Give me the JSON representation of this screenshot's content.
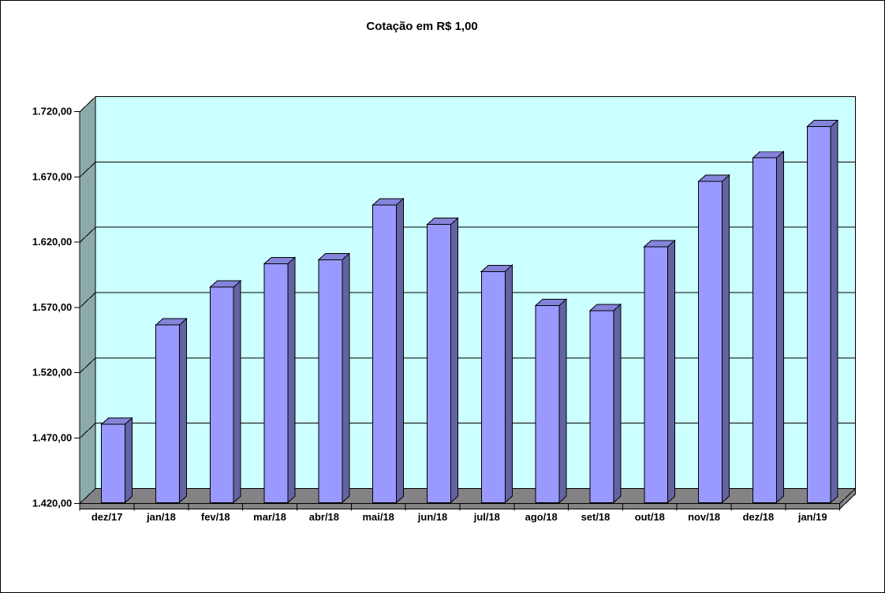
{
  "title": "Cotação em R$ 1,00",
  "chart_data": {
    "type": "bar",
    "style": "3d-column",
    "title": "Cotação em R$ 1,00",
    "xlabel": "",
    "ylabel": "",
    "categories": [
      "dez/17",
      "jan/18",
      "fev/18",
      "mar/18",
      "abr/18",
      "mai/18",
      "jun/18",
      "jul/18",
      "ago/18",
      "set/18",
      "out/18",
      "nov/18",
      "dez/18",
      "jan/19"
    ],
    "values": [
      1480,
      1556,
      1585,
      1603,
      1606,
      1648,
      1633,
      1597,
      1571,
      1567,
      1616,
      1666,
      1684,
      1708
    ],
    "ylim": [
      1420,
      1720
    ],
    "ytick_step": 50,
    "ytick_labels": [
      "1.420,00",
      "1.470,00",
      "1.520,00",
      "1.570,00",
      "1.620,00",
      "1.670,00",
      "1.720,00"
    ],
    "grid": true,
    "legend": "none",
    "colors": {
      "bar_front": "#9999FF",
      "bar_top": "#8484DB",
      "bar_side": "#6363A3",
      "wall_back": "#CCFFFF",
      "wall_side": "#8CAAAA",
      "floor": "#848284",
      "line": "#000000",
      "background": "#FFFFFF",
      "text": "#000000"
    }
  }
}
